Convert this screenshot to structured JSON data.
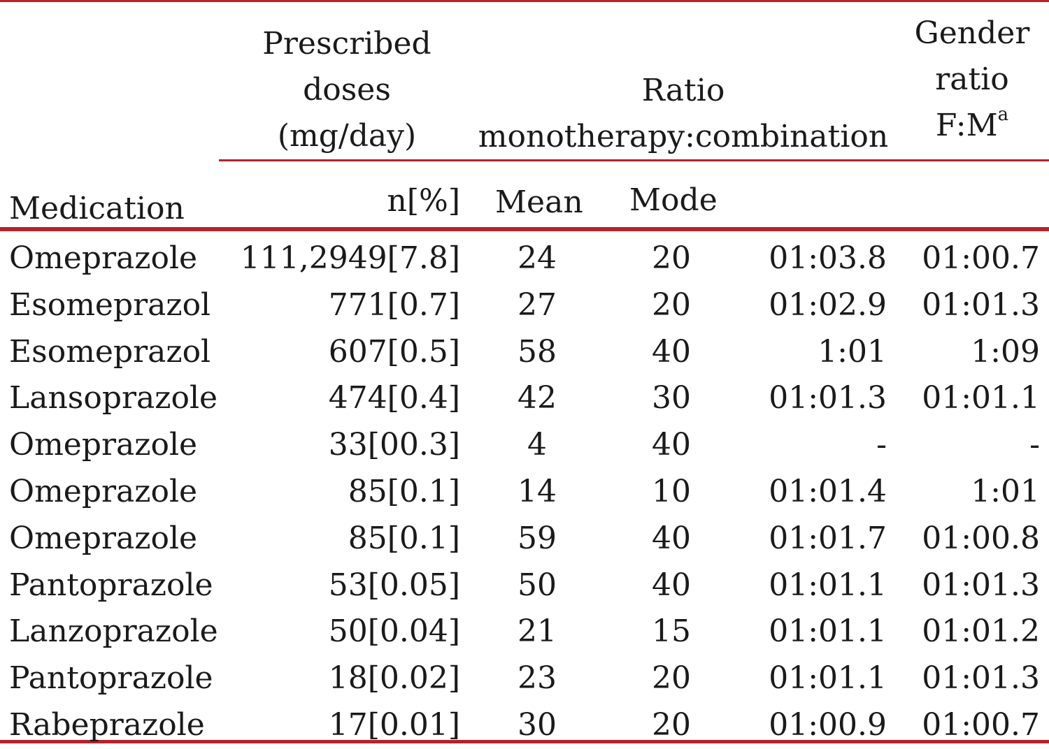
{
  "table": {
    "header": {
      "prescribed": [
        "Prescribed",
        "doses",
        "(mg/day)"
      ],
      "ratio": [
        "Ratio",
        "monotherapy:combination"
      ],
      "gender": [
        "Gender",
        "ratio",
        "F:M"
      ],
      "gender_sup": "a",
      "medication": "Medication",
      "n": "n[%]",
      "mean": "Mean",
      "mode": "Mode"
    },
    "rows": [
      {
        "medication": "Omeprazole",
        "n": "111,2949[7.8]",
        "mean": "24",
        "mode": "20",
        "ratio": "01:03.8",
        "gender": "01:00.7"
      },
      {
        "medication": "Esomeprazol",
        "n": "771[0.7]",
        "mean": "27",
        "mode": "20",
        "ratio": "01:02.9",
        "gender": "01:01.3"
      },
      {
        "medication": "Esomeprazol",
        "n": "607[0.5]",
        "mean": "58",
        "mode": "40",
        "ratio": "1:01",
        "gender": "1:09"
      },
      {
        "medication": "Lansoprazole",
        "n": "474[0.4]",
        "mean": "42",
        "mode": "30",
        "ratio": "01:01.3",
        "gender": "01:01.1"
      },
      {
        "medication": "Omeprazole",
        "n": "33[00.3]",
        "mean": "4",
        "mode": "40",
        "ratio": "-",
        "gender": "-"
      },
      {
        "medication": "Omeprazole",
        "n": "85[0.1]",
        "mean": "14",
        "mode": "10",
        "ratio": "01:01.4",
        "gender": "1:01"
      },
      {
        "medication": "Omeprazole",
        "n": "85[0.1]",
        "mean": "59",
        "mode": "40",
        "ratio": "01:01.7",
        "gender": "01:00.8"
      },
      {
        "medication": "Pantoprazole",
        "n": "53[0.05]",
        "mean": "50",
        "mode": "40",
        "ratio": "01:01.1",
        "gender": "01:01.3"
      },
      {
        "medication": "Lanzoprazole",
        "n": "50[0.04]",
        "mean": "21",
        "mode": "15",
        "ratio": "01:01.1",
        "gender": "01:01.2"
      },
      {
        "medication": "Pantoprazole",
        "n": "18[0.02]",
        "mean": "23",
        "mode": "20",
        "ratio": "01:01.1",
        "gender": "01:01.3"
      },
      {
        "medication": "Rabeprazole",
        "n": "17[0.01]",
        "mean": "30",
        "mode": "20",
        "ratio": "01:00.9",
        "gender": "01:00.7"
      }
    ]
  },
  "colors": {
    "rule": "#b5222a",
    "text": "#1a1a1a"
  }
}
